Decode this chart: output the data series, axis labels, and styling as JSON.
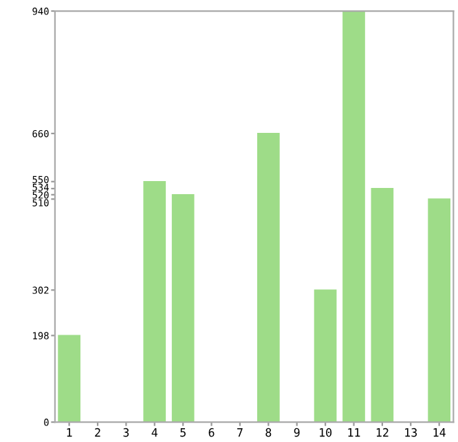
{
  "chart_data": {
    "type": "bar",
    "categories": [
      "1",
      "2",
      "3",
      "4",
      "5",
      "6",
      "7",
      "8",
      "9",
      "10",
      "11",
      "12",
      "13",
      "14"
    ],
    "values": [
      198,
      0,
      0,
      550,
      520,
      0,
      0,
      660,
      0,
      302,
      940,
      534,
      0,
      510
    ],
    "color": "#9edc88",
    "ylim": [
      0,
      940
    ],
    "yticks": [
      0,
      198,
      302,
      510,
      520,
      534,
      550,
      660,
      940
    ],
    "grid": false
  }
}
